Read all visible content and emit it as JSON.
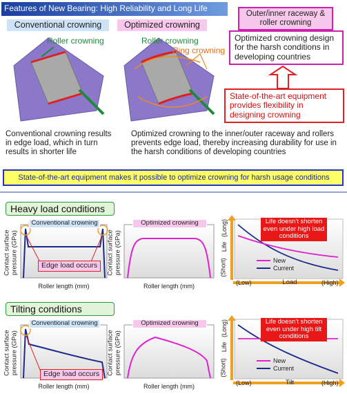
{
  "header": {
    "title": "Features of New Bearing: High Reliability and Long Life"
  },
  "conventional": {
    "label": "Conventional crowning",
    "roller_label": "Roller crowning",
    "description": "Conventional crowning results in edge load, which in turn results in shorter life"
  },
  "optimized": {
    "label": "Optimized crowning",
    "roller_label": "Roller crowning",
    "ring_label": "Ring crowning",
    "description": "Optimized crowning to the inner/outer raceway and rollers prevents edge load, thereby increasing durability for use in the harsh conditions of developing countries"
  },
  "raceway_box": {
    "title": "Outer/inner raceway & roller crowning",
    "text": "Optimized crowning design for the harsh conditions in developing countries"
  },
  "equipment_box": {
    "text": "State-of-the-art equipment provides flexibility in designing crowning"
  },
  "banner": {
    "text": "State-of-the-art equipment makes it possible to optimize crowning for harsh usage conditions"
  },
  "sections": [
    {
      "title": "Heavy load conditions",
      "conventional_label": "Conventional crowning",
      "optimized_label": "Optimized crowning",
      "y_label": "Contact surface pressure (GPa)",
      "x_label": "Roller length (mm)",
      "annotation": "Edge load occurs",
      "life": {
        "y_label": "Life",
        "y_high": "(Long)",
        "y_low": "(Short)",
        "note": "Life doesn't shorten even under high load conditions",
        "legend": [
          "New",
          "Current"
        ],
        "x_low": "(Low)",
        "x_label": "Load",
        "x_high": "(High)"
      }
    },
    {
      "title": "Tilting conditions",
      "conventional_label": "Conventional crowning",
      "optimized_label": "Optimized crowning",
      "y_label": "Contact surface pressure (GPa)",
      "x_label": "Roller length (mm)",
      "annotation": "Edge load occurs",
      "life": {
        "y_label": "Life",
        "y_high": "(Long)",
        "y_low": "(Short)",
        "note": "Life doesn't shorten even under high tilt conditions",
        "legend": [
          "New",
          "Current"
        ],
        "x_low": "(Low)",
        "x_label": "Tilt",
        "x_high": "(High)"
      }
    }
  ]
}
